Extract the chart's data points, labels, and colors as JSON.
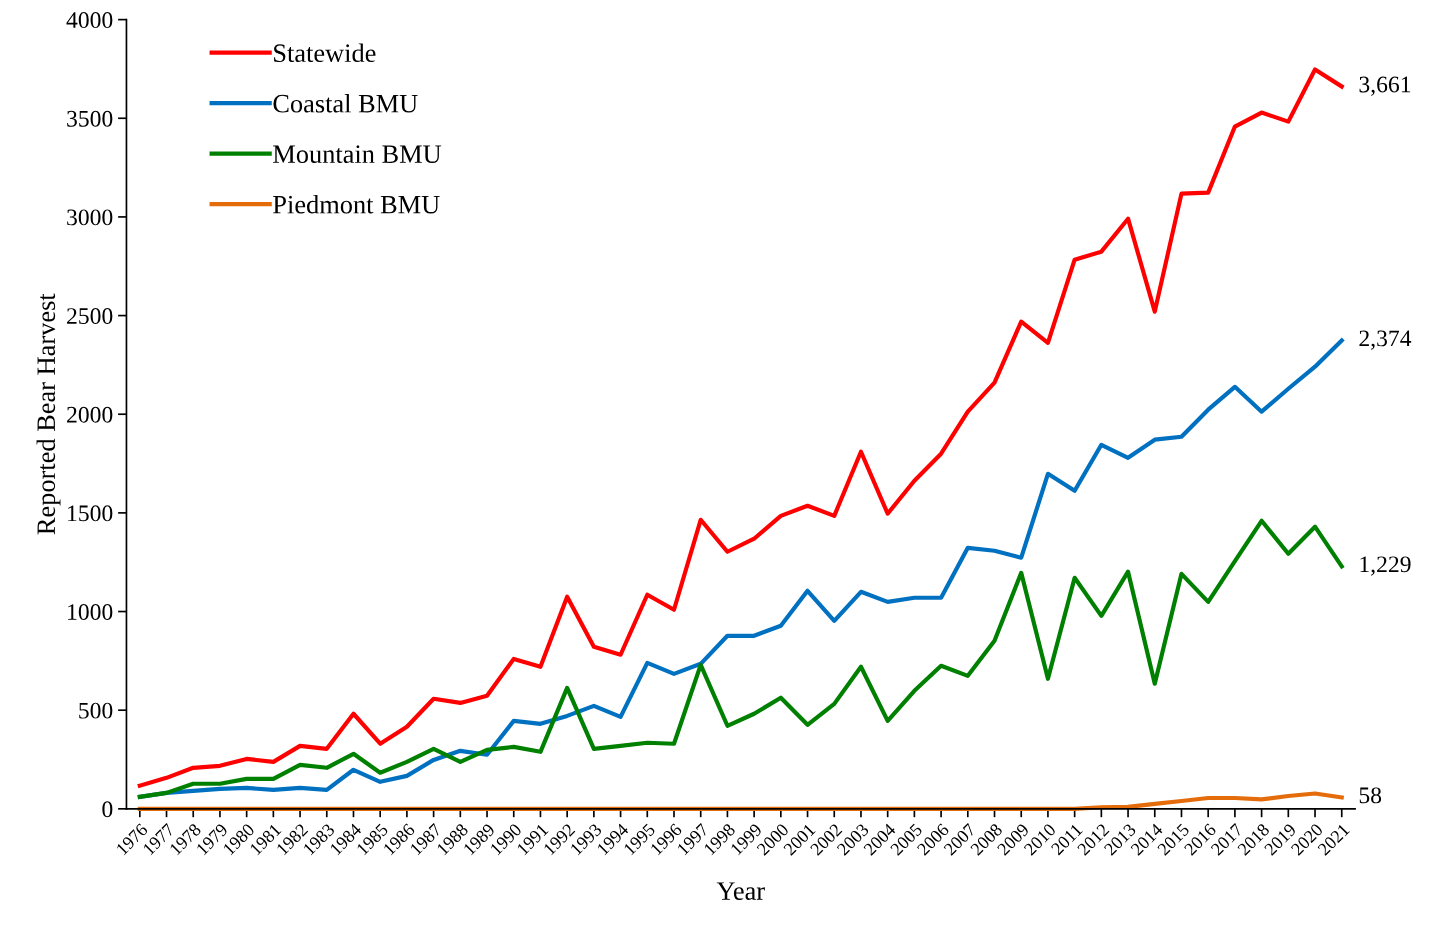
{
  "chart_data": {
    "type": "line",
    "xlabel": "Year",
    "ylabel": "Reported Bear Harvest",
    "categories": [
      "1976",
      "1977",
      "1978",
      "1979",
      "1980",
      "1981",
      "1982",
      "1983",
      "1984",
      "1985",
      "1986",
      "1987",
      "1988",
      "1989",
      "1990",
      "1991",
      "1992",
      "1993",
      "1994",
      "1995",
      "1996",
      "1997",
      "1998",
      "1999",
      "2000",
      "2001",
      "2002",
      "2003",
      "2004",
      "2005",
      "2006",
      "2007",
      "2008",
      "2009",
      "2010",
      "2011",
      "2012",
      "2013",
      "2014",
      "2015",
      "2016",
      "2017",
      "2018",
      "2019",
      "2020",
      "2021"
    ],
    "ylim": [
      0,
      4000
    ],
    "yticks": [
      0,
      500,
      1000,
      1500,
      2000,
      2500,
      3000,
      3500,
      4000
    ],
    "grid": false,
    "legend": "top left",
    "marker": "none",
    "line_style": "solid",
    "series": [
      {
        "name": "Statewide",
        "color": "#ff0000",
        "values": [
          117,
          157,
          208,
          218,
          253,
          238,
          319,
          304,
          482,
          330,
          416,
          558,
          537,
          573,
          760,
          720,
          1075,
          821,
          781,
          1085,
          1009,
          1465,
          1303,
          1369,
          1485,
          1536,
          1485,
          1810,
          1496,
          1663,
          1800,
          2013,
          2160,
          2469,
          2362,
          2783,
          2824,
          2991,
          2520,
          3118,
          3123,
          3458,
          3529,
          3483,
          3747,
          3661
        ],
        "value_labels": [
          null,
          null,
          null,
          null,
          null,
          null,
          null,
          null,
          null,
          null,
          null,
          null,
          null,
          null,
          null,
          null,
          null,
          null,
          null,
          null,
          null,
          null,
          null,
          null,
          null,
          null,
          null,
          null,
          null,
          null,
          null,
          null,
          null,
          null,
          null,
          null,
          null,
          null,
          null,
          null,
          null,
          null,
          null,
          null,
          null,
          "3,661"
        ]
      },
      {
        "name": "Coastal BMU",
        "color": "#0070c0",
        "values": [
          61,
          81,
          91,
          101,
          106,
          96,
          106,
          96,
          198,
          137,
          167,
          248,
          294,
          274,
          446,
          431,
          471,
          522,
          466,
          740,
          684,
          735,
          877,
          877,
          928,
          1105,
          953,
          1100,
          1049,
          1070,
          1070,
          1323,
          1308,
          1273,
          1698,
          1612,
          1845,
          1779,
          1871,
          1886,
          2023,
          2139,
          2013,
          2129,
          2241,
          2374
        ],
        "value_labels": [
          null,
          null,
          null,
          null,
          null,
          null,
          null,
          null,
          null,
          null,
          null,
          null,
          null,
          null,
          null,
          null,
          null,
          null,
          null,
          null,
          null,
          null,
          null,
          null,
          null,
          null,
          null,
          null,
          null,
          null,
          null,
          null,
          null,
          null,
          null,
          null,
          null,
          null,
          null,
          null,
          null,
          null,
          null,
          null,
          null,
          "2,374"
        ]
      },
      {
        "name": "Mountain BMU",
        "color": "#008000",
        "values": [
          61,
          81,
          127,
          127,
          152,
          152,
          223,
          208,
          279,
          183,
          238,
          304,
          238,
          299,
          314,
          289,
          613,
          304,
          319,
          335,
          330,
          730,
          421,
          482,
          563,
          426,
          532,
          720,
          446,
          598,
          725,
          674,
          852,
          1196,
          659,
          1171,
          978,
          1202,
          634,
          1191,
          1049,
          1255,
          1460,
          1293,
          1430,
          1229
        ],
        "value_labels": [
          null,
          null,
          null,
          null,
          null,
          null,
          null,
          null,
          null,
          null,
          null,
          null,
          null,
          null,
          null,
          null,
          null,
          null,
          null,
          null,
          null,
          null,
          null,
          null,
          null,
          null,
          null,
          null,
          null,
          null,
          null,
          null,
          null,
          null,
          null,
          null,
          null,
          null,
          null,
          null,
          null,
          null,
          null,
          null,
          null,
          "1,229"
        ]
      },
      {
        "name": "Piedmont BMU",
        "color": "#e46c0a",
        "values": [
          0,
          0,
          0,
          0,
          0,
          0,
          0,
          0,
          0,
          0,
          0,
          0,
          0,
          0,
          0,
          0,
          0,
          0,
          0,
          0,
          0,
          0,
          0,
          0,
          0,
          0,
          0,
          0,
          0,
          0,
          0,
          0,
          0,
          0,
          0,
          0,
          8,
          10,
          25,
          40,
          55,
          55,
          48,
          65,
          78,
          58
        ],
        "value_labels": [
          null,
          null,
          null,
          null,
          null,
          null,
          null,
          null,
          null,
          null,
          null,
          null,
          null,
          null,
          null,
          null,
          null,
          null,
          null,
          null,
          null,
          null,
          null,
          null,
          null,
          null,
          null,
          null,
          null,
          null,
          null,
          null,
          null,
          null,
          null,
          null,
          null,
          null,
          null,
          null,
          null,
          null,
          null,
          null,
          null,
          "58"
        ]
      }
    ]
  }
}
